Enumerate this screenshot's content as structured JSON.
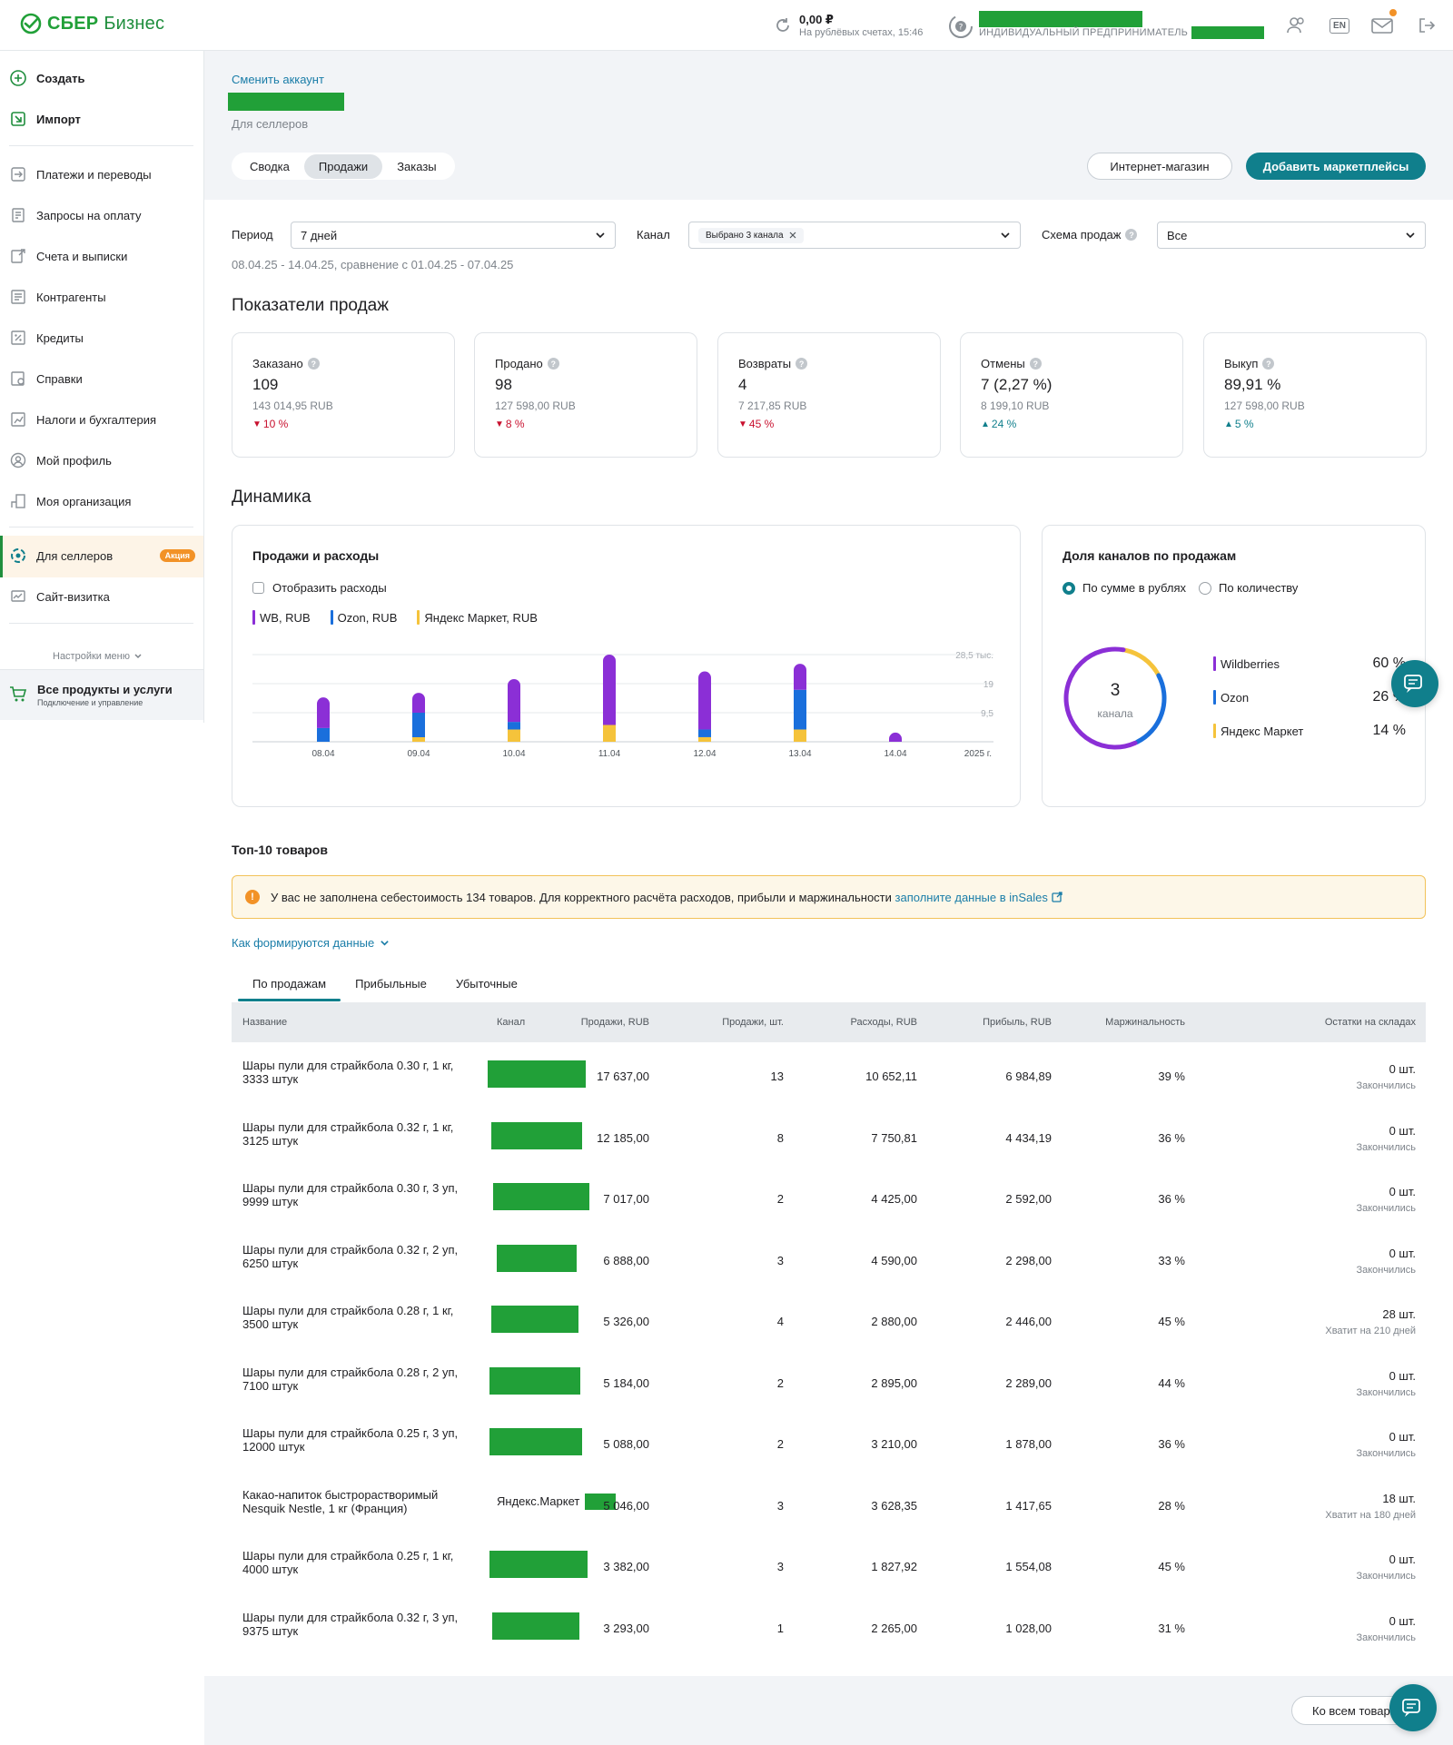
{
  "colors": {
    "brand": "#21a038",
    "accent": "#107f8c",
    "wb": "#8b2fd6",
    "ozon": "#1a6fdc",
    "yandex": "#f5c33b",
    "down": "#c8102e"
  },
  "header": {
    "logo_brand": "СБЕР",
    "logo_product": "Бизнес",
    "balance_value": "0,00 ₽",
    "balance_sub": "На рублёвых счетах, 15:46",
    "ip_label": "ИНДИВИДУАЛЬНЫЙ ПРЕДПРИНИМАТЕЛЬ",
    "lang": "EN",
    "icons": [
      "users-icon",
      "language-icon",
      "mail-icon",
      "logout-icon"
    ]
  },
  "sidebar": {
    "create": "Создать",
    "import": "Импорт",
    "items": [
      {
        "label": "Платежи и переводы",
        "icon": "transfer-icon"
      },
      {
        "label": "Запросы на оплату",
        "icon": "request-icon"
      },
      {
        "label": "Счета и выписки",
        "icon": "statement-icon"
      },
      {
        "label": "Контрагенты",
        "icon": "contacts-icon"
      },
      {
        "label": "Кредиты",
        "icon": "credit-icon"
      },
      {
        "label": "Справки",
        "icon": "certificate-icon"
      },
      {
        "label": "Налоги и бухгалтерия",
        "icon": "tax-icon"
      },
      {
        "label": "Мой профиль",
        "icon": "profile-icon"
      },
      {
        "label": "Моя организация",
        "icon": "organization-icon"
      }
    ],
    "sellers": "Для селлеров",
    "sellers_badge": "Акция",
    "site": "Сайт-визитка",
    "settings": "Настройки меню",
    "products_title": "Все продукты и услуги",
    "products_sub": "Подключение и управление"
  },
  "account": {
    "change": "Сменить аккаунт",
    "subtitle": "Для селлеров"
  },
  "tabs": [
    "Сводка",
    "Продажи",
    "Заказы"
  ],
  "buttons": {
    "shop": "Интернет-магазин",
    "add_marketplaces": "Добавить маркетплейсы",
    "all_goods": "Ко всем товарам"
  },
  "filters": {
    "period_label": "Период",
    "period_value": "7 дней",
    "channel_label": "Канал",
    "channel_chip": "Выбрано 3 канала",
    "scheme_label": "Схема продаж",
    "scheme_value": "Все",
    "range": "08.04.25 - 14.04.25, сравнение с 01.04.25 - 07.04.25"
  },
  "kpi_title": "Показатели продаж",
  "kpis": [
    {
      "label": "Заказано",
      "value": "109",
      "money": "143 014,95 RUB",
      "delta": "10 %",
      "dir": "down"
    },
    {
      "label": "Продано",
      "value": "98",
      "money": "127 598,00 RUB",
      "delta": "8 %",
      "dir": "down"
    },
    {
      "label": "Возвраты",
      "value": "4",
      "money": "7 217,85 RUB",
      "delta": "45 %",
      "dir": "down"
    },
    {
      "label": "Отмены",
      "value": "7 (2,27 %)",
      "money": "8 199,10 RUB",
      "delta": "24 %",
      "dir": "up"
    },
    {
      "label": "Выкуп",
      "value": "89,91 %",
      "money": "127 598,00 RUB",
      "delta": "5 %",
      "dir": "up"
    }
  ],
  "dynamics_title": "Динамика",
  "sales_card": {
    "title": "Продажи и расходы",
    "show_expenses": "Отобразить расходы",
    "legend": [
      "WB, RUB",
      "Ozon, RUB",
      "Яндекс Маркет, RUB"
    ],
    "y_ticks": [
      "28,5 тыс.",
      "19",
      "9,5"
    ],
    "year": "2025 г."
  },
  "chart_data": [
    {
      "type": "bar",
      "stacked": true,
      "categories": [
        "08.04",
        "09.04",
        "10.04",
        "11.04",
        "12.04",
        "13.04",
        "14.04"
      ],
      "series": [
        {
          "name": "WB, RUB",
          "values": [
            10000,
            6500,
            14000,
            23000,
            19000,
            8500,
            3000
          ]
        },
        {
          "name": "Ozon, RUB",
          "values": [
            4500,
            8000,
            2500,
            0,
            2500,
            13000,
            0
          ]
        },
        {
          "name": "Яндекс Маркет, RUB",
          "values": [
            0,
            1500,
            4000,
            5500,
            1500,
            4000,
            0
          ]
        }
      ],
      "ylim": [
        0,
        28500
      ],
      "y_ticks": [
        9500,
        19000,
        28500
      ],
      "grid": true
    },
    {
      "type": "pie",
      "donut": true,
      "categories": [
        "Wildberries",
        "Ozon",
        "Яндекс Маркет"
      ],
      "values": [
        60,
        26,
        14
      ]
    }
  ],
  "share_card": {
    "title": "Доля каналов по продажам",
    "radio_rub": "По сумме в рублях",
    "radio_qty": "По количеству",
    "center_value": "3",
    "center_label": "канала",
    "rows": [
      {
        "name": "Wildberries",
        "pct": "60 %"
      },
      {
        "name": "Ozon",
        "pct": "26 %"
      },
      {
        "name": "Яндекс Маркет",
        "pct": "14 %"
      }
    ]
  },
  "top_title": "Топ-10 товаров",
  "alert": {
    "text": "У вас не заполнена себестоимость 134 товаров. Для корректного расчёта расходов, прибыли и маржинальности",
    "link": "заполните данные в inSales"
  },
  "how_data": "Как формируются данные",
  "table_tabs": [
    "По продажам",
    "Прибыльные",
    "Убыточные"
  ],
  "table": {
    "columns": [
      "Название",
      "Канал",
      "Продажи, RUB",
      "Продажи, шт.",
      "Расходы, RUB",
      "Прибыль, RUB",
      "Маржинальность",
      "Остатки на складах"
    ],
    "rows": [
      {
        "name": "Шары пули для страйкбола 0.30 г, 1 кг, 3333 штук",
        "channel": "",
        "sales": "17 637,00",
        "qty": "13",
        "exp": "10 652,11",
        "profit": "6 984,89",
        "margin": "39 %",
        "stock": "0 шт.",
        "stock_note": "Закончились"
      },
      {
        "name": "Шары пули для страйкбола 0.32 г, 1 кг, 3125 штук",
        "channel": "",
        "sales": "12 185,00",
        "qty": "8",
        "exp": "7 750,81",
        "profit": "4 434,19",
        "margin": "36 %",
        "stock": "0 шт.",
        "stock_note": "Закончились"
      },
      {
        "name": "Шары пули для страйкбола 0.30 г, 3 уп, 9999 штук",
        "channel": "",
        "sales": "7 017,00",
        "qty": "2",
        "exp": "4 425,00",
        "profit": "2 592,00",
        "margin": "36 %",
        "stock": "0 шт.",
        "stock_note": "Закончились"
      },
      {
        "name": "Шары пули для страйкбола 0.32 г, 2 уп, 6250 штук",
        "channel": "",
        "sales": "6 888,00",
        "qty": "3",
        "exp": "4 590,00",
        "profit": "2 298,00",
        "margin": "33 %",
        "stock": "0 шт.",
        "stock_note": "Закончились"
      },
      {
        "name": "Шары пули для страйкбола 0.28 г, 1 кг, 3500 штук",
        "channel": "",
        "sales": "5 326,00",
        "qty": "4",
        "exp": "2 880,00",
        "profit": "2 446,00",
        "margin": "45 %",
        "stock": "28 шт.",
        "stock_note": "Хватит на 210 дней"
      },
      {
        "name": "Шары пули для страйкбола 0.28 г, 2 уп, 7100 штук",
        "channel": "",
        "sales": "5 184,00",
        "qty": "2",
        "exp": "2 895,00",
        "profit": "2 289,00",
        "margin": "44 %",
        "stock": "0 шт.",
        "stock_note": "Закончились"
      },
      {
        "name": "Шары пули для страйкбола 0.25 г, 3 уп, 12000 штук",
        "channel": "",
        "sales": "5 088,00",
        "qty": "2",
        "exp": "3 210,00",
        "profit": "1 878,00",
        "margin": "36 %",
        "stock": "0 шт.",
        "stock_note": "Закончились"
      },
      {
        "name": "Какао-напиток быстрорастворимый Nesquik Nestle, 1 кг (Франция)",
        "channel": "Яндекс.Маркет",
        "sales": "5 046,00",
        "qty": "3",
        "exp": "3 628,35",
        "profit": "1 417,65",
        "margin": "28 %",
        "stock": "18 шт.",
        "stock_note": "Хватит на 180 дней"
      },
      {
        "name": "Шары пули для страйкбола 0.25 г, 1 кг, 4000 штук",
        "channel": "",
        "sales": "3 382,00",
        "qty": "3",
        "exp": "1 827,92",
        "profit": "1 554,08",
        "margin": "45 %",
        "stock": "0 шт.",
        "stock_note": "Закончились"
      },
      {
        "name": "Шары пули для страйкбола 0.32 г, 3 уп, 9375 штук",
        "channel": "",
        "sales": "3 293,00",
        "qty": "1",
        "exp": "2 265,00",
        "profit": "1 028,00",
        "margin": "31 %",
        "stock": "0 шт.",
        "stock_note": "Закончились"
      }
    ]
  }
}
